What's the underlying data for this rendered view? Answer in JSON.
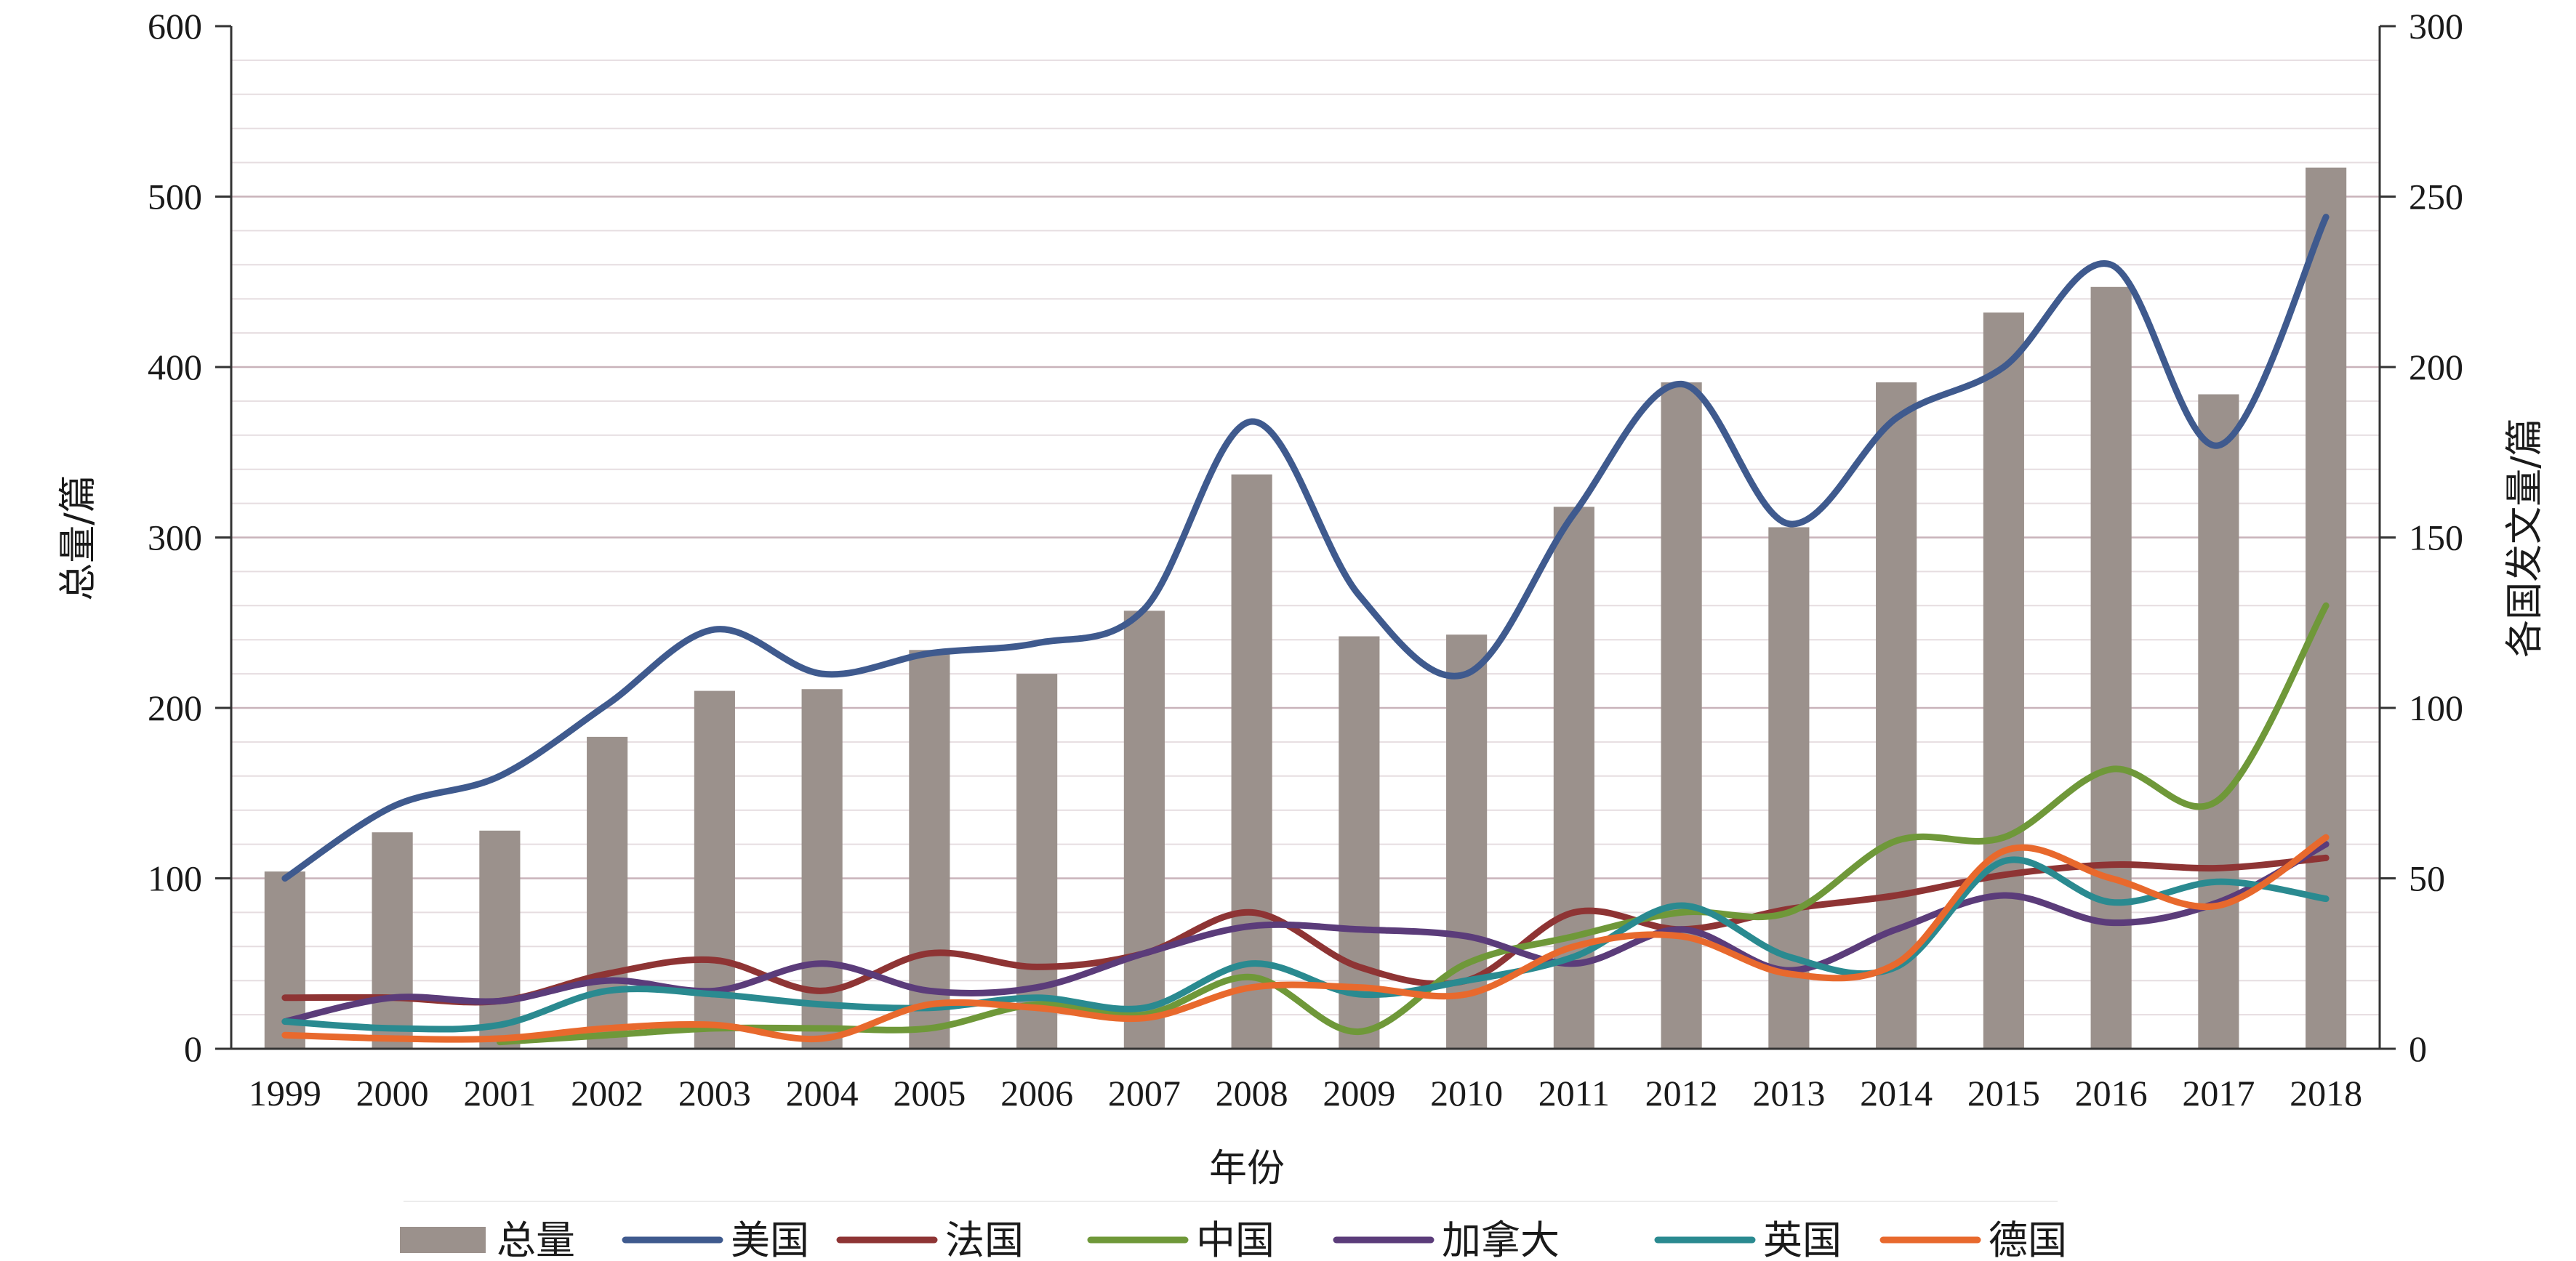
{
  "chart_data": {
    "type": "bar",
    "categories": [
      "1999",
      "2000",
      "2001",
      "2002",
      "2003",
      "2004",
      "2005",
      "2006",
      "2007",
      "2008",
      "2009",
      "2010",
      "2011",
      "2012",
      "2013",
      "2014",
      "2015",
      "2016",
      "2017",
      "2018"
    ],
    "xlabel": "年份",
    "ylabel": "总量/篇",
    "ylabel_right": "各国发文量/篇",
    "ylim": [
      0,
      600
    ],
    "ylim_right": [
      0,
      300
    ],
    "yticks": [
      "0",
      "100",
      "200",
      "300",
      "400",
      "500",
      "600"
    ],
    "yticks_right": [
      "0",
      "50",
      "100",
      "150",
      "200",
      "250",
      "300"
    ],
    "grid": true,
    "legend_position": "bottom",
    "bar_series": {
      "name": "总量",
      "color": "#9b918c",
      "axis": "left",
      "values": [
        104,
        127,
        128,
        183,
        210,
        211,
        234,
        220,
        257,
        337,
        242,
        243,
        318,
        391,
        306,
        391,
        432,
        447,
        384,
        517
      ]
    },
    "line_series": [
      {
        "name": "美国",
        "color": "#3f5a8e",
        "axis": "right",
        "values": [
          50,
          71,
          80,
          101,
          123,
          110,
          116,
          119,
          129,
          184,
          133,
          110,
          157,
          195,
          154,
          185,
          200,
          230,
          177,
          244
        ]
      },
      {
        "name": "法国",
        "color": "#8e3434",
        "axis": "right",
        "values": [
          15,
          15,
          14,
          22,
          26,
          17,
          28,
          24,
          28,
          40,
          24,
          20,
          40,
          35,
          41,
          45,
          51,
          54,
          53,
          56
        ]
      },
      {
        "name": "中国",
        "color": "#6f9839",
        "axis": "right",
        "values": [
          null,
          null,
          2,
          4,
          6,
          6,
          6,
          13,
          10,
          21,
          5,
          25,
          33,
          40,
          40,
          61,
          62,
          82,
          73,
          130
        ]
      },
      {
        "name": "加拿大",
        "color": "#5b3c7a",
        "axis": "right",
        "values": [
          8,
          15,
          14,
          20,
          17,
          25,
          17,
          18,
          28,
          36,
          35,
          33,
          25,
          35,
          23,
          35,
          45,
          37,
          43,
          60
        ]
      },
      {
        "name": "英国",
        "color": "#2a8a90",
        "axis": "right",
        "values": [
          8,
          6,
          7,
          17,
          16,
          13,
          12,
          15,
          12,
          25,
          16,
          20,
          27,
          42,
          27,
          24,
          55,
          43,
          49,
          44
        ]
      },
      {
        "name": "德国",
        "color": "#e8692d",
        "axis": "right",
        "values": [
          4,
          3,
          3,
          6,
          7,
          3,
          13,
          12,
          9,
          18,
          18,
          16,
          30,
          33,
          22,
          25,
          58,
          50,
          42,
          62
        ]
      }
    ]
  }
}
